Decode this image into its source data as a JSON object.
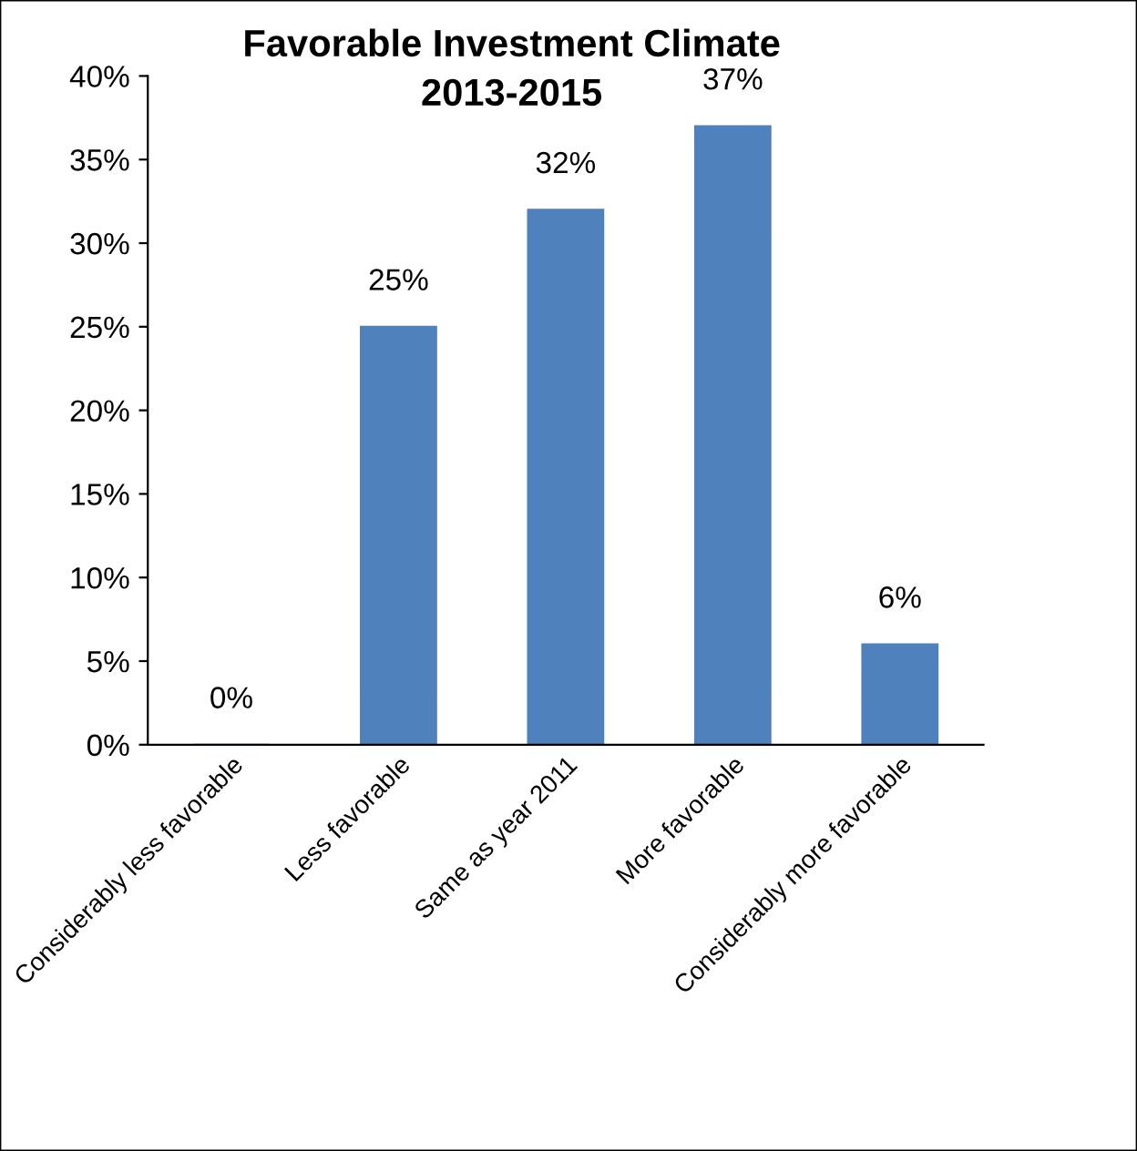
{
  "chart_data": {
    "type": "bar",
    "title": "Favorable Investment Climate\n2013-2015",
    "categories": [
      "Considerably less favorable",
      "Less favorable",
      "Same as year 2011",
      "More favorable",
      "Considerably more favorable"
    ],
    "values": [
      0,
      25,
      32,
      37,
      6
    ],
    "color": "#4f81bd",
    "value_labels": [
      "0%",
      "25%",
      "32%",
      "37%",
      "6%"
    ],
    "ylim": [
      0,
      40
    ],
    "yticks": [
      {
        "value": 0,
        "label": "0%"
      },
      {
        "value": 5,
        "label": "5%"
      },
      {
        "value": 10,
        "label": "10%"
      },
      {
        "value": 15,
        "label": "15%"
      },
      {
        "value": 20,
        "label": "20%"
      },
      {
        "value": 25,
        "label": "25%"
      },
      {
        "value": 30,
        "label": "30%"
      },
      {
        "value": 35,
        "label": "35%"
      },
      {
        "value": 40,
        "label": "40%"
      }
    ],
    "grid": false,
    "legend": false
  }
}
